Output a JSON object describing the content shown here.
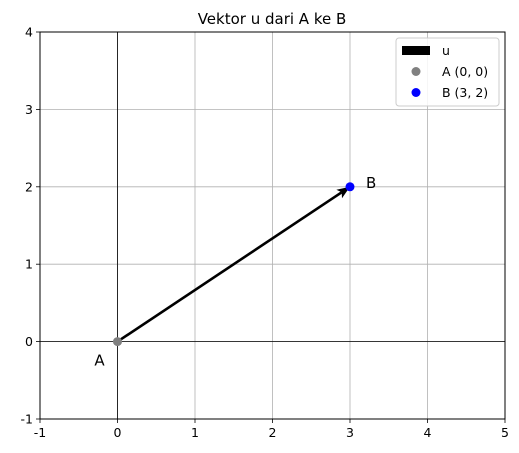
{
  "chart_data": {
    "type": "scatter",
    "title": "Vektor u dari A ke B",
    "xlabel": "",
    "ylabel": "",
    "xlim": [
      -1,
      5
    ],
    "ylim": [
      -1,
      4
    ],
    "x_ticks": [
      -1,
      0,
      1,
      2,
      3,
      4,
      5
    ],
    "y_ticks": [
      -1,
      0,
      1,
      2,
      3,
      4
    ],
    "grid": true,
    "axis_lines": {
      "x": 0,
      "y": 0
    },
    "vector": {
      "name": "u",
      "from": [
        0,
        0
      ],
      "to": [
        3,
        2
      ],
      "color": "#000000"
    },
    "points": [
      {
        "name": "A",
        "x": 0,
        "y": 0,
        "color": "#808080",
        "label": "A",
        "legend": "A (0, 0)"
      },
      {
        "name": "B",
        "x": 3,
        "y": 2,
        "color": "#0000ff",
        "label": "B",
        "legend": "B (3, 2)"
      }
    ],
    "legend": {
      "placement": "top-right",
      "entries": [
        {
          "label": "u",
          "marker": "arrow",
          "color": "#000000"
        },
        {
          "label": "A (0, 0)",
          "marker": "point",
          "color": "#808080"
        },
        {
          "label": "B (3, 2)",
          "marker": "point",
          "color": "#0000ff"
        }
      ]
    }
  }
}
